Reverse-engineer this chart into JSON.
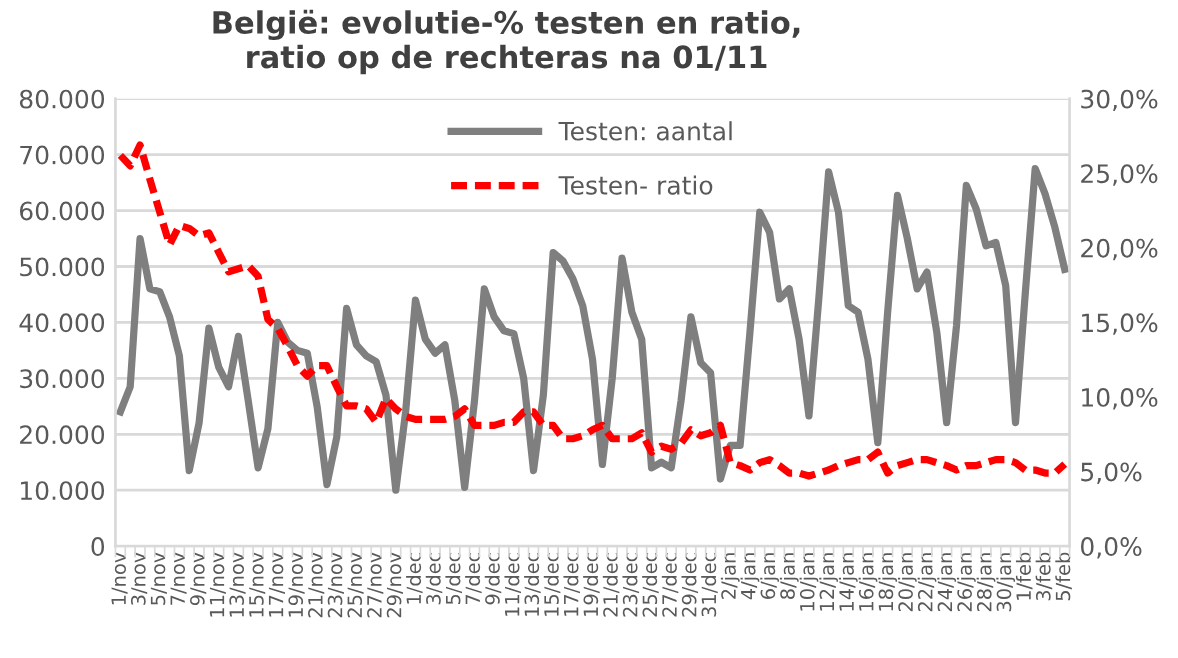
{
  "chart_data": {
    "type": "line",
    "title": "België: evolutie-% testen en ratio,\nratio op de rechteras na 01/11",
    "categories": [
      "1/nov",
      null,
      "3/nov",
      null,
      "5/nov",
      null,
      "7/nov",
      null,
      "9/nov",
      null,
      "11/nov",
      null,
      "13/nov",
      null,
      "15/nov",
      null,
      "17/nov",
      null,
      "19/nov",
      null,
      "21/nov",
      null,
      "23/nov",
      null,
      "25/nov",
      null,
      "27/nov",
      null,
      "29/nov",
      null,
      "1/dec",
      null,
      "3/dec",
      null,
      "5/dec",
      null,
      "7/dec",
      null,
      "9/dec",
      null,
      "11/dec",
      null,
      "13/dec",
      null,
      "15/dec",
      null,
      "17/dec",
      null,
      "19/dec",
      null,
      "21/dec",
      null,
      "23/dec",
      null,
      "25/dec",
      null,
      "27/dec",
      null,
      "29/dec",
      null,
      "31/dec",
      null,
      "2/jan",
      null,
      "4/jan",
      null,
      "6/jan",
      null,
      "8/jan",
      null,
      "10/jan",
      null,
      "12/jan",
      null,
      "14/jan",
      null,
      "16/jan",
      null,
      "18/jan",
      null,
      "20/jan",
      null,
      "22/jan",
      null,
      "24/jan",
      null,
      "26/jan",
      null,
      "28/jan",
      null,
      "30/jan",
      null,
      "1/feb",
      null,
      "3/feb",
      null,
      "5/feb"
    ],
    "series": [
      {
        "name": "Testen: aantal",
        "color": "#7f7f7f",
        "line_style": "solid",
        "values": [
          24000,
          28500,
          55000,
          46000,
          45500,
          41000,
          34000,
          13500,
          22000,
          39000,
          32000,
          28500,
          37500,
          26000,
          14000,
          21000,
          40000,
          36500,
          35000,
          34500,
          25000,
          11000,
          19500,
          42500,
          36000,
          34000,
          33000,
          27000,
          10000,
          24000,
          44000,
          37000,
          34500,
          36000,
          26000,
          10500,
          26000,
          46000,
          41000,
          38500,
          38000,
          30000,
          13500,
          27000,
          52500,
          51000,
          47800,
          43000,
          33400,
          14600,
          30000,
          51500,
          41800,
          37000,
          14000,
          15000,
          14000,
          26000,
          41000,
          32800,
          31000,
          12000,
          18000,
          18000,
          38200,
          59700,
          56100,
          44200,
          46000,
          37000,
          23300,
          44200,
          66900,
          59700,
          43000,
          41800,
          33400,
          18500,
          41800,
          62700,
          55000,
          46000,
          49000,
          38200,
          22100,
          39400,
          64500,
          60300,
          53700,
          54300,
          46600,
          22100,
          45400,
          67500,
          63000,
          57000,
          49500
        ]
      },
      {
        "name": "Testen- ratio",
        "color": "#ff0000",
        "line_style": "dashed",
        "axis": "y2",
        "values": [
          26.2,
          25.5,
          26.9,
          24.6,
          22.4,
          20.2,
          21.5,
          21.3,
          20.8,
          21.0,
          19.7,
          18.4,
          18.6,
          18.8,
          18.1,
          15.2,
          14.6,
          13.4,
          12.1,
          11.4,
          12.1,
          12.1,
          10.7,
          9.4,
          9.4,
          9.2,
          8.3,
          9.9,
          9.2,
          8.7,
          8.5,
          8.5,
          8.5,
          8.5,
          8.7,
          9.2,
          8.1,
          8.1,
          8.1,
          8.3,
          8.3,
          9.0,
          9.0,
          8.1,
          8.1,
          7.2,
          7.2,
          7.4,
          7.8,
          8.1,
          7.2,
          7.2,
          7.2,
          7.6,
          6.3,
          6.7,
          6.5,
          6.9,
          7.8,
          7.4,
          7.6,
          8.1,
          5.6,
          5.4,
          5.1,
          5.6,
          5.8,
          5.4,
          4.9,
          4.9,
          4.7,
          4.9,
          5.1,
          5.4,
          5.6,
          5.8,
          5.8,
          6.3,
          4.9,
          5.4,
          5.6,
          5.8,
          5.8,
          5.6,
          5.4,
          5.1,
          5.4,
          5.4,
          5.6,
          5.8,
          5.8,
          5.6,
          5.1,
          5.1,
          4.9,
          4.9,
          5.5
        ]
      }
    ],
    "ylim": [
      0,
      80000
    ],
    "yticks": [
      0,
      {
        "value": 10000,
        "label": "10.000"
      },
      {
        "value": 20000,
        "label": "20.000"
      },
      {
        "value": 30000,
        "label": "30.000"
      },
      {
        "value": 40000,
        "label": "40.000"
      },
      {
        "value": 50000,
        "label": "50.000"
      },
      {
        "value": 60000,
        "label": "60.000"
      },
      {
        "value": 70000,
        "label": "70.000"
      },
      {
        "value": 80000,
        "label": "80.000"
      }
    ],
    "y2lim": [
      0,
      30
    ],
    "y2ticks": [
      {
        "value": 0,
        "label": "0,0%"
      },
      {
        "value": 5,
        "label": "5,0%"
      },
      {
        "value": 10,
        "label": "10,0%"
      },
      {
        "value": 15,
        "label": "15,0%"
      },
      {
        "value": 20,
        "label": "20,0%"
      },
      {
        "value": 25,
        "label": "25,0%"
      },
      {
        "value": 30,
        "label": "30,0%"
      }
    ],
    "grid": "y",
    "legend": "top",
    "marker": "none"
  }
}
